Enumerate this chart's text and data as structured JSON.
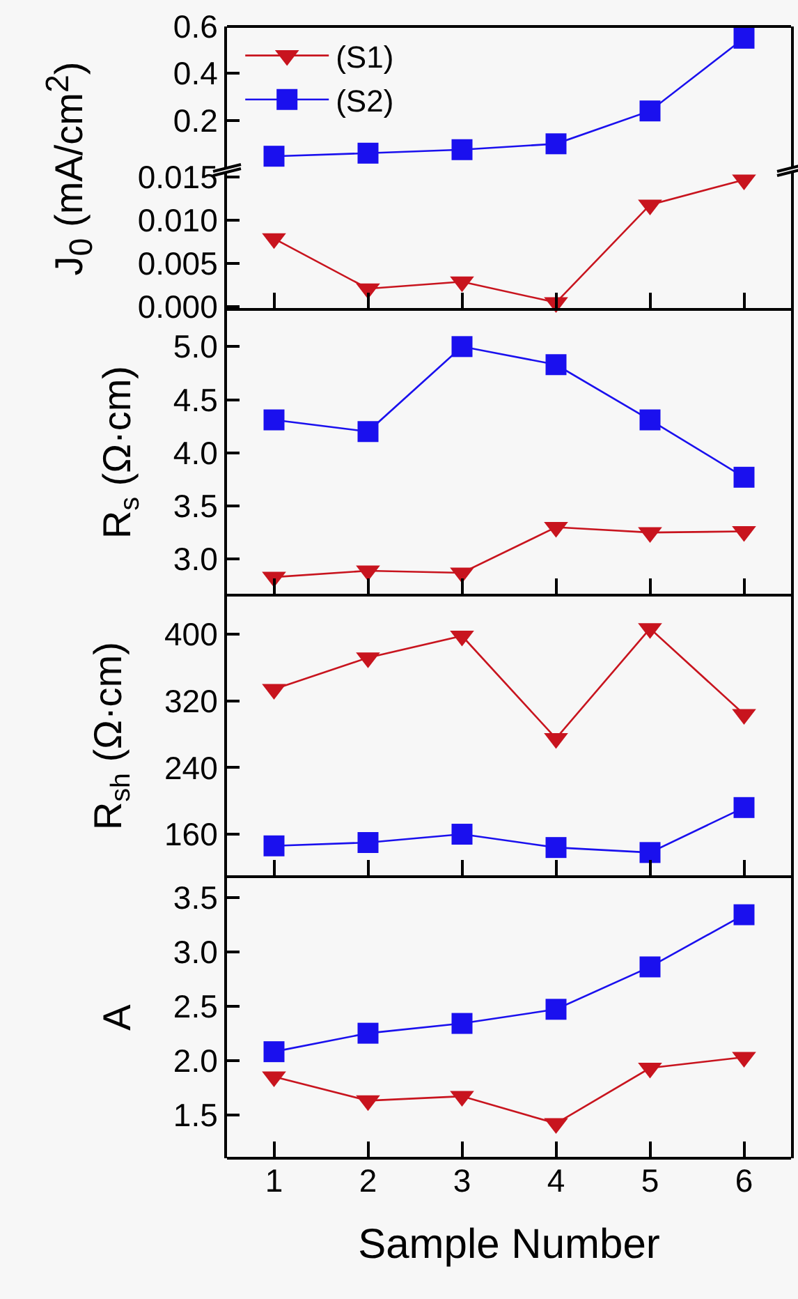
{
  "chart_data": [
    {
      "type": "line",
      "x": [
        1,
        2,
        3,
        4,
        5,
        6
      ],
      "xlim": [
        0.5,
        6.5
      ],
      "xticks": [
        1,
        2,
        3,
        4,
        5,
        6
      ],
      "tick_labels": "y",
      "legend": "top left",
      "ylim": [
        0,
        0.6
      ],
      "yticks": [
        0.2,
        0.4,
        0.6
      ],
      "series": [
        {
          "name": "(S1)",
          "color": "#c8141e",
          "marker": "triangle",
          "values": [
            null,
            null,
            null,
            null,
            null,
            null
          ]
        },
        {
          "name": "(S2)",
          "color": "#1a10ee",
          "marker": "square",
          "values": [
            0.047,
            0.06,
            0.075,
            0.1,
            0.24,
            0.55
          ]
        }
      ]
    },
    {
      "type": "line",
      "ylabel": "J$_{0}$ (mA/cm$^{2}$)",
      "x": [
        1,
        2,
        3,
        4,
        5,
        6
      ],
      "xlim": [
        0.5,
        6.5
      ],
      "xticks": [
        1,
        2,
        3,
        4,
        5,
        6
      ],
      "tick_labels": "y",
      "ylim": [
        -0.0003,
        0.0155
      ],
      "yticks": [
        {
          "value": 0,
          "label": "0.000"
        },
        {
          "value": 0.005,
          "label": "0.005"
        },
        {
          "value": 0.01,
          "label": "0.010"
        },
        {
          "value": 0.015,
          "label": "0.015"
        }
      ],
      "series": [
        {
          "color": "#c8141e",
          "marker": "triangle",
          "values": [
            0.0079,
            0.0021,
            0.0029,
            0.0005,
            0.0118,
            0.0147
          ]
        }
      ]
    },
    {
      "type": "line",
      "ylabel": "R$_{s}$ (Ω·cm)",
      "x": [
        1,
        2,
        3,
        4,
        5,
        6
      ],
      "xlim": [
        0.5,
        6.5
      ],
      "xticks": [
        1,
        2,
        3,
        4,
        5,
        6
      ],
      "tick_labels": "y",
      "ylim": [
        2.66,
        5.35
      ],
      "yticks": [
        {
          "value": 3,
          "label": "3.0"
        },
        3.5,
        {
          "value": 4,
          "label": "4.0"
        },
        4.5,
        {
          "value": 5,
          "label": "5.0"
        }
      ],
      "series": [
        {
          "color": "#c8141e",
          "marker": "triangle",
          "values": [
            2.83,
            2.89,
            2.87,
            3.3,
            3.25,
            3.26
          ]
        },
        {
          "color": "#1a10ee",
          "marker": "square",
          "values": [
            4.31,
            4.2,
            5.0,
            4.83,
            4.31,
            3.77
          ]
        }
      ]
    },
    {
      "type": "line",
      "ylabel": "R$_{sh}$ (Ω·cm)",
      "x": [
        1,
        2,
        3,
        4,
        5,
        6
      ],
      "xlim": [
        0.5,
        6.5
      ],
      "xticks": [
        1,
        2,
        3,
        4,
        5,
        6
      ],
      "tick_labels": "y",
      "ylim": [
        109,
        447
      ],
      "yticks": [
        160,
        240,
        320,
        400
      ],
      "series": [
        {
          "color": "#c8141e",
          "marker": "triangle",
          "values": [
            334,
            372,
            398,
            275,
            407,
            304
          ]
        },
        {
          "color": "#1a10ee",
          "marker": "square",
          "values": [
            146,
            150,
            160,
            144,
            138,
            192
          ]
        }
      ]
    },
    {
      "type": "line",
      "ylabel": "A",
      "xlabel": "Sample Number",
      "x": [
        1,
        2,
        3,
        4,
        5,
        6
      ],
      "xlim": [
        0.5,
        6.5
      ],
      "xticks": [
        1,
        2,
        3,
        4,
        5,
        6
      ],
      "ylim": [
        1.1,
        3.69
      ],
      "yticks": [
        1.5,
        {
          "value": 2,
          "label": "2.0"
        },
        2.5,
        {
          "value": 3,
          "label": "3.0"
        },
        3.5
      ],
      "series": [
        {
          "color": "#c8141e",
          "marker": "triangle",
          "values": [
            1.85,
            1.63,
            1.67,
            1.42,
            1.93,
            2.03
          ]
        },
        {
          "color": "#1a10ee",
          "marker": "square",
          "values": [
            2.08,
            2.25,
            2.34,
            2.47,
            2.86,
            3.34
          ]
        }
      ]
    }
  ]
}
